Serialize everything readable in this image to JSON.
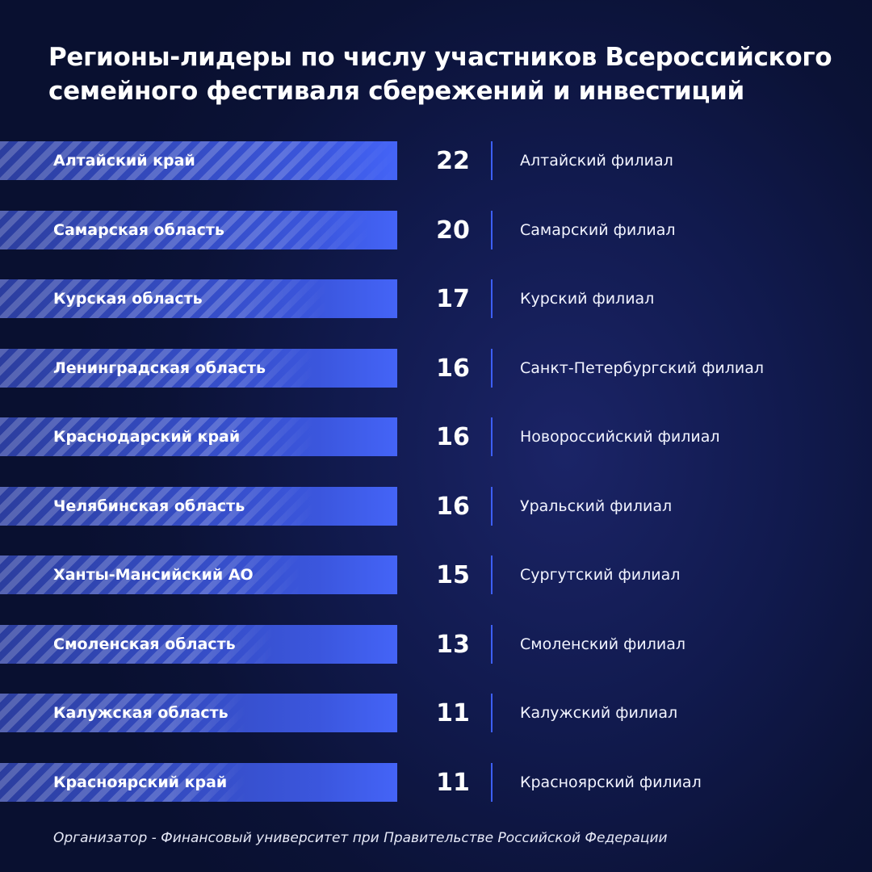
{
  "header": {
    "title_line1": "Регионы-лидеры по числу участников Всероссийского",
    "title_line2": "семейного фестиваля сбережений и инвестиций"
  },
  "chart_data": {
    "type": "bar",
    "orientation": "horizontal",
    "title": "Регионы-лидеры по числу участников Всероссийского семейного фестиваля сбережений и инвестиций",
    "categories": [
      "Алтайский край",
      "Самарская область",
      "Курская область",
      "Ленинградская область",
      "Краснодарский край",
      "Челябинская область",
      "Ханты-Мансийский АО",
      "Смоленская область",
      "Калужская область",
      "Красноярский край"
    ],
    "values": [
      22,
      20,
      17,
      16,
      16,
      16,
      15,
      13,
      11,
      11
    ],
    "branches": [
      "Алтайский филиал",
      "Самарский филиал",
      "Курский филиал",
      "Санкт-Петербургский филиал",
      "Новороссийский филиал",
      "Уральский филиал",
      "Сургутский филиал",
      "Смоленский филиал",
      "Калужский филиал",
      "Красноярский филиал"
    ],
    "colors": {
      "bar": "#3d5cf0",
      "divider": "#3d5ff5",
      "background": "#0b1236"
    }
  },
  "footer": {
    "text": "Организатор - Финансовый университет при Правительстве Российской Федерации"
  }
}
